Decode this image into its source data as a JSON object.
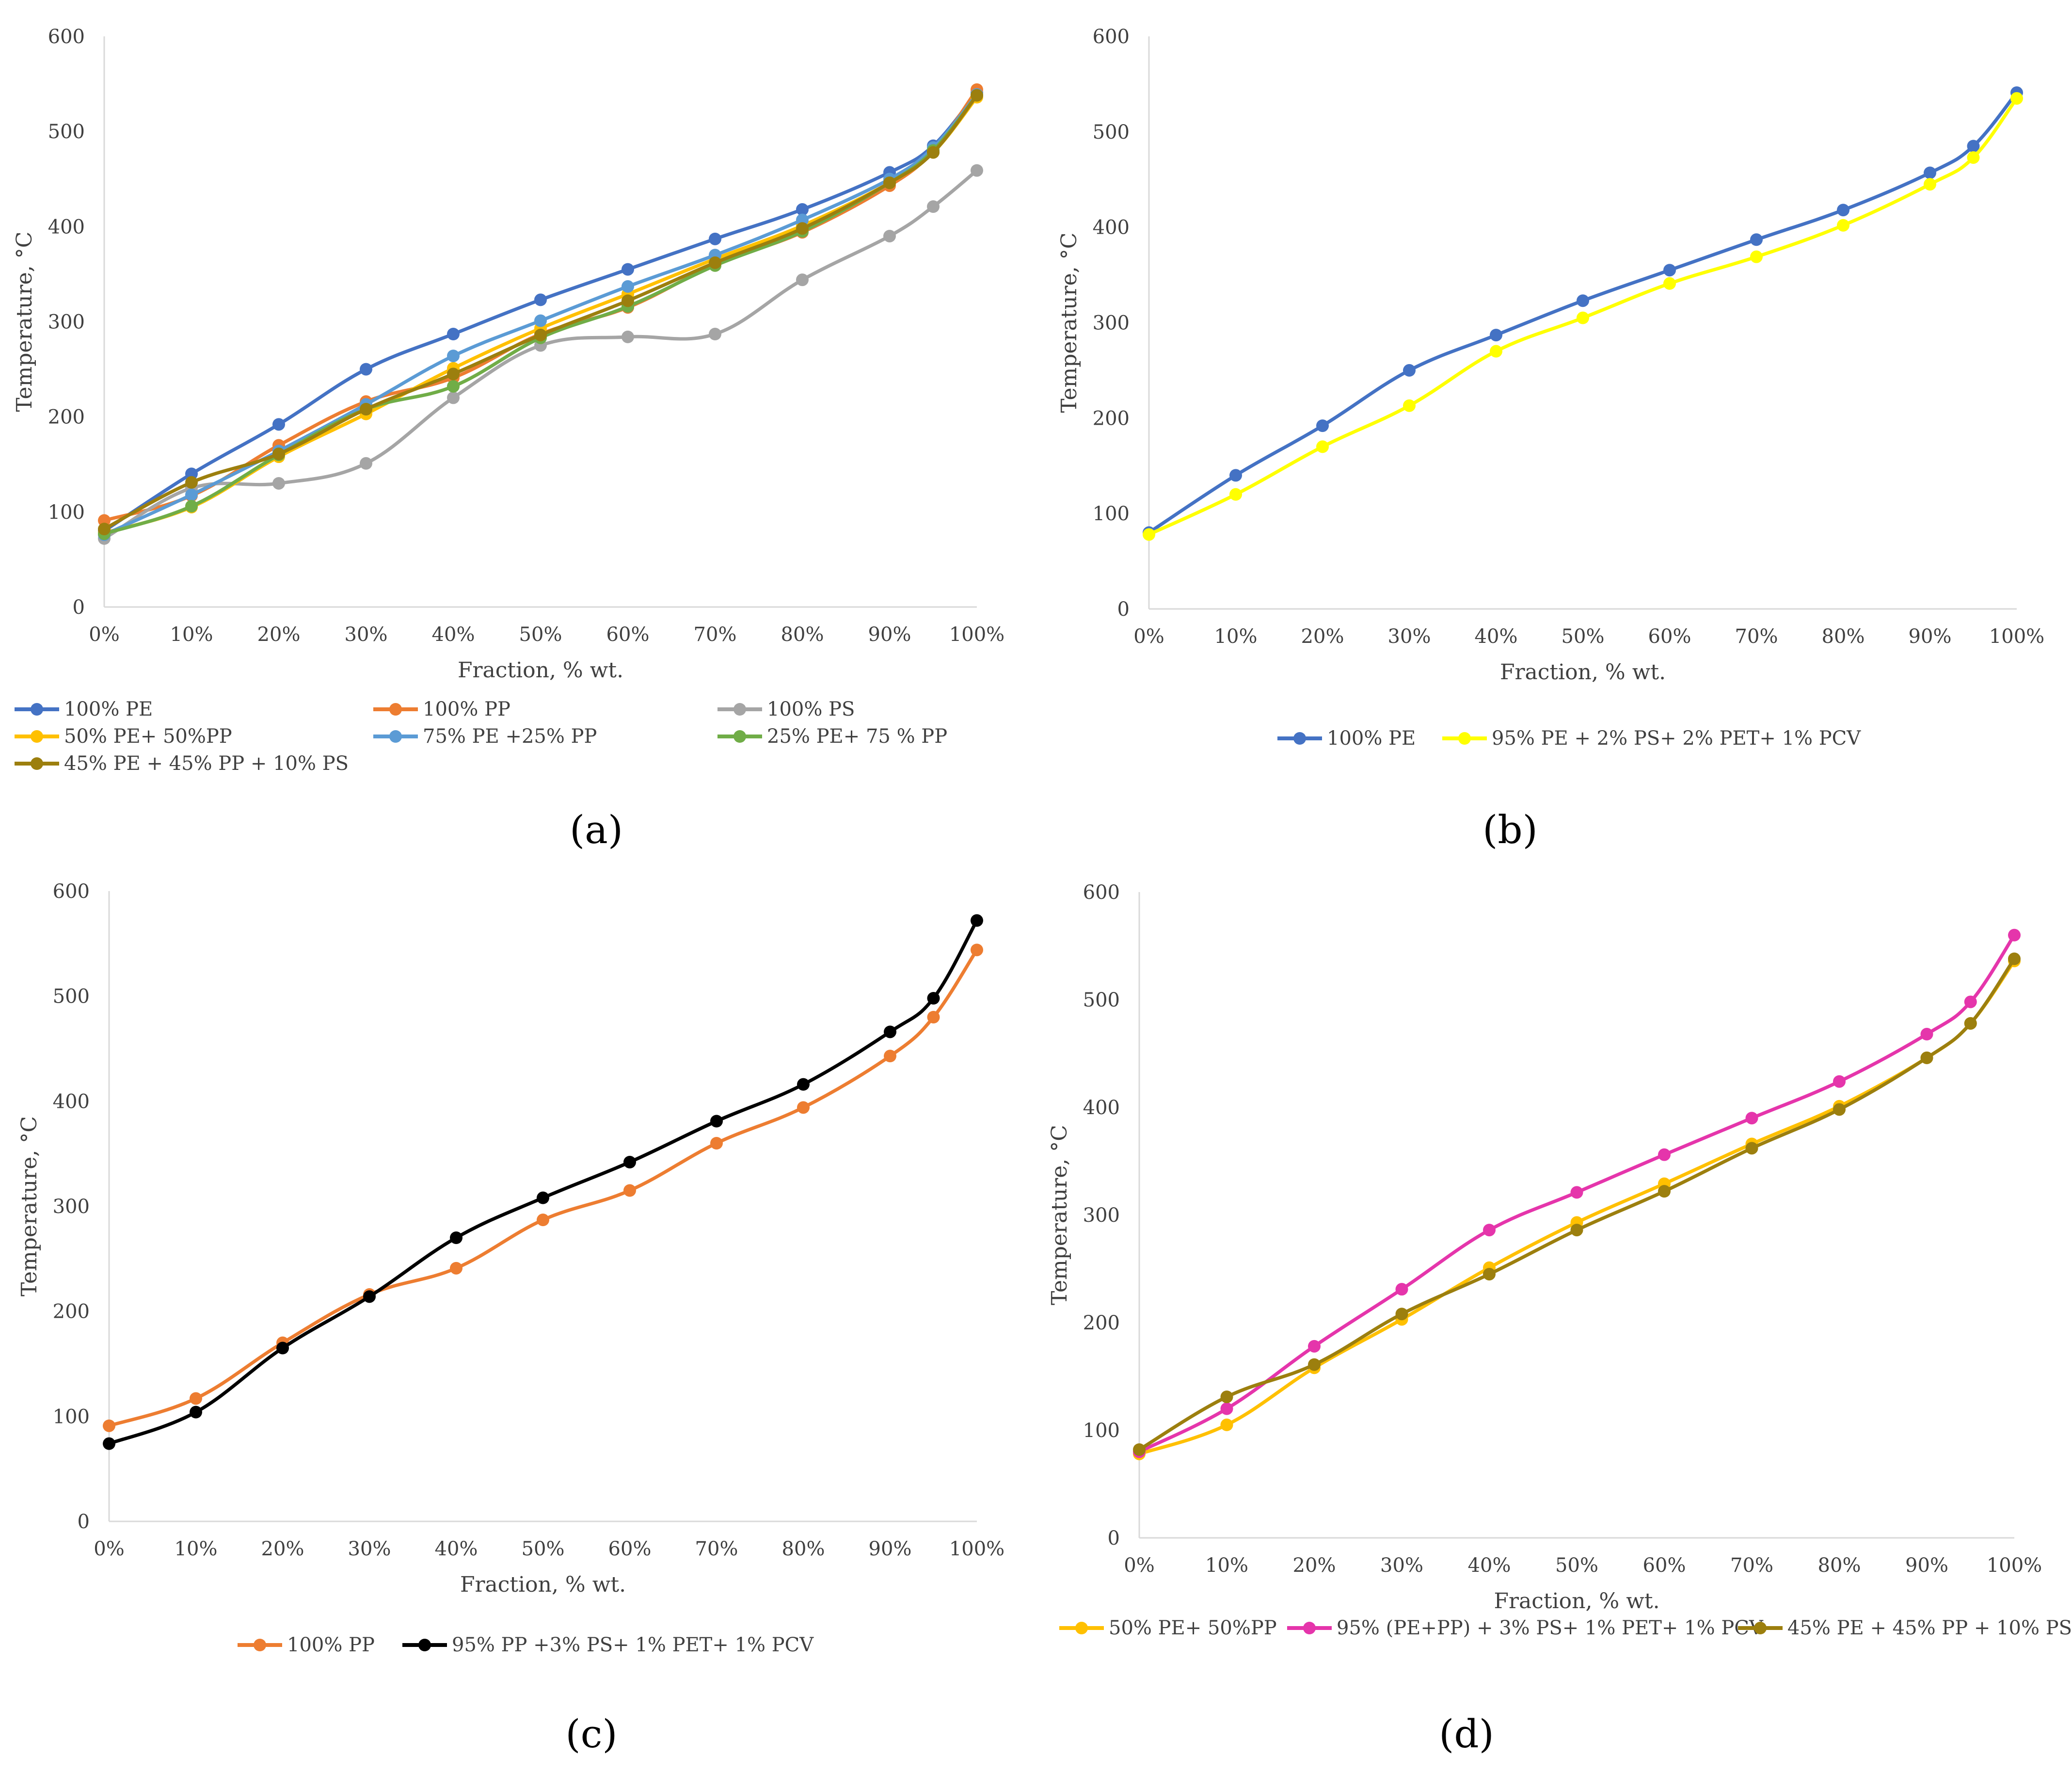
{
  "colors": {
    "pe100": "#4472C4",
    "pp100": "#ED7D31",
    "ps100": "#A5A5A5",
    "pe50pp50": "#FFC000",
    "pe75pp25": "#5B9BD5",
    "pe25pp75": "#70AD47",
    "pe45pp45ps10": "#9C7F0E",
    "pe95mix": "#FFFF00",
    "pp95mix": "#000000",
    "pepp95mix": "#E535AB"
  },
  "chart_data": [
    {
      "id": "a",
      "panel_label": "(a)",
      "type": "line",
      "title": "",
      "xlabel": "Fraction, % wt.",
      "ylabel": "Temperature, °C",
      "ylim": [
        0,
        600
      ],
      "y_ticks": [
        "0",
        "100",
        "200",
        "300",
        "400",
        "500",
        "600"
      ],
      "x": [
        0,
        10,
        20,
        30,
        40,
        50,
        60,
        70,
        80,
        90,
        95,
        100
      ],
      "x_ticks": [
        "0%",
        "10%",
        "20%",
        "30%",
        "40%",
        "50%",
        "60%",
        "70%",
        "80%",
        "90%",
        "100%"
      ],
      "legend_position": "bottom",
      "series": [
        {
          "name": "100% PE",
          "color_key": "pe100",
          "values": [
            80,
            140,
            192,
            250,
            287,
            323,
            355,
            387,
            418,
            457,
            485,
            541
          ]
        },
        {
          "name": "100% PP",
          "color_key": "pp100",
          "values": [
            91,
            117,
            170,
            216,
            241,
            287,
            315,
            360,
            394,
            443,
            480,
            544
          ]
        },
        {
          "name": "100% PS",
          "color_key": "ps100",
          "values": [
            72,
            125,
            130,
            151,
            220,
            275,
            284,
            287,
            344,
            390,
            421,
            459
          ]
        },
        {
          "name": "50% PE+ 50%PP",
          "color_key": "pe50pp50",
          "values": [
            78,
            105,
            158,
            203,
            251,
            293,
            329,
            366,
            401,
            446,
            478,
            536
          ]
        },
        {
          "name": "75% PE +25% PP",
          "color_key": "pe75pp25",
          "values": [
            76,
            118,
            164,
            213,
            264,
            301,
            337,
            370,
            407,
            450,
            483,
            539
          ]
        },
        {
          "name": "25% PE+ 75 % PP",
          "color_key": "pe25pp75",
          "values": [
            77,
            106,
            160,
            208,
            232,
            283,
            316,
            359,
            395,
            446,
            480,
            538
          ]
        },
        {
          "name": "45% PE + 45% PP + 10% PS",
          "color_key": "pe45pp45ps10",
          "values": [
            82,
            131,
            161,
            208,
            245,
            286,
            322,
            362,
            398,
            446,
            478,
            538
          ]
        }
      ]
    },
    {
      "id": "b",
      "panel_label": "(b)",
      "type": "line",
      "title": "",
      "xlabel": "Fraction, % wt.",
      "ylabel": "Temperature, °C",
      "ylim": [
        0,
        600
      ],
      "y_ticks": [
        "0",
        "100",
        "200",
        "300",
        "400",
        "500",
        "600"
      ],
      "x": [
        0,
        10,
        20,
        30,
        40,
        50,
        60,
        70,
        80,
        90,
        95,
        100
      ],
      "x_ticks": [
        "0%",
        "10%",
        "20%",
        "30%",
        "40%",
        "50%",
        "60%",
        "70%",
        "80%",
        "90%",
        "100%"
      ],
      "legend_position": "bottom",
      "series": [
        {
          "name": "100% PE",
          "color_key": "pe100",
          "values": [
            80,
            140,
            192,
            250,
            287,
            323,
            355,
            387,
            418,
            457,
            485,
            541
          ]
        },
        {
          "name": "95% PE + 2% PS+ 2% PET+ 1% PCV",
          "color_key": "pe95mix",
          "values": [
            78,
            120,
            170,
            213,
            270,
            305,
            341,
            369,
            402,
            445,
            473,
            535
          ]
        }
      ]
    },
    {
      "id": "c",
      "panel_label": "(c)",
      "type": "line",
      "title": "",
      "xlabel": "Fraction, % wt.",
      "ylabel": "Temperature, °C",
      "ylim": [
        0,
        600
      ],
      "y_ticks": [
        "0",
        "100",
        "200",
        "300",
        "400",
        "500",
        "600"
      ],
      "x": [
        0,
        10,
        20,
        30,
        40,
        50,
        60,
        70,
        80,
        90,
        95,
        100
      ],
      "x_ticks": [
        "0%",
        "10%",
        "20%",
        "30%",
        "40%",
        "50%",
        "60%",
        "70%",
        "80%",
        "90%",
        "100%"
      ],
      "legend_position": "bottom",
      "series": [
        {
          "name": "100% PP",
          "color_key": "pp100",
          "values": [
            91,
            117,
            170,
            216,
            241,
            287,
            315,
            360,
            394,
            443,
            480,
            544
          ]
        },
        {
          "name": "95% PP +3% PS+ 1% PET+ 1% PCV",
          "color_key": "pp95mix",
          "values": [
            74,
            104,
            165,
            214,
            270,
            308,
            342,
            381,
            416,
            466,
            498,
            572
          ]
        }
      ]
    },
    {
      "id": "d",
      "panel_label": "(d)",
      "type": "line",
      "title": "",
      "xlabel": "Fraction, % wt.",
      "ylabel": "Temperature, °C",
      "ylim": [
        0,
        600
      ],
      "y_ticks": [
        "0",
        "100",
        "200",
        "300",
        "400",
        "500",
        "600"
      ],
      "x": [
        0,
        10,
        20,
        30,
        40,
        50,
        60,
        70,
        80,
        90,
        95,
        100
      ],
      "x_ticks": [
        "0%",
        "10%",
        "20%",
        "30%",
        "40%",
        "50%",
        "60%",
        "70%",
        "80%",
        "90%",
        "100%"
      ],
      "legend_position": "bottom",
      "series": [
        {
          "name": "50% PE+ 50%PP",
          "color_key": "pe50pp50",
          "values": [
            78,
            105,
            158,
            203,
            251,
            293,
            329,
            366,
            401,
            446,
            478,
            536
          ]
        },
        {
          "name": "95% (PE+PP) + 3% PS+ 1% PET+ 1% PCV",
          "color_key": "pepp95mix",
          "values": [
            80,
            120,
            178,
            231,
            286,
            321,
            356,
            390,
            424,
            468,
            498,
            560
          ]
        },
        {
          "name": "45% PE + 45% PP + 10% PS",
          "color_key": "pe45pp45ps10",
          "values": [
            82,
            131,
            161,
            208,
            245,
            286,
            322,
            362,
            398,
            446,
            478,
            538
          ]
        }
      ]
    }
  ]
}
